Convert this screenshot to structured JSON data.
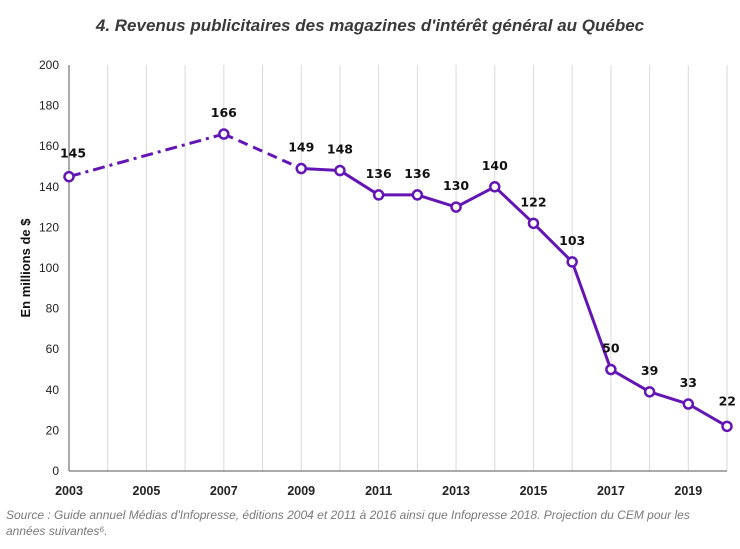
{
  "chart_data": {
    "type": "line",
    "title": "4. Revenus publicitaires des magazines d'intérêt général au Québec",
    "ylabel": "En millions de $",
    "xlabel": "",
    "ylim": [
      0,
      200
    ],
    "yticks": [
      0,
      20,
      40,
      60,
      80,
      100,
      120,
      140,
      160,
      180,
      200
    ],
    "xlim": [
      2003,
      2020
    ],
    "xticks": [
      2003,
      2005,
      2007,
      2009,
      2011,
      2013,
      2015,
      2017,
      2019
    ],
    "grid": "vertical",
    "legend": "none",
    "color": "#6316b4",
    "points": [
      {
        "x": 2003,
        "y": 145
      },
      {
        "x": 2007,
        "y": 166
      },
      {
        "x": 2009,
        "y": 149
      },
      {
        "x": 2010,
        "y": 148
      },
      {
        "x": 2011,
        "y": 136
      },
      {
        "x": 2012,
        "y": 136
      },
      {
        "x": 2013,
        "y": 130
      },
      {
        "x": 2014,
        "y": 140
      },
      {
        "x": 2015,
        "y": 122
      },
      {
        "x": 2016,
        "y": 103
      },
      {
        "x": 2017,
        "y": 50
      },
      {
        "x": 2018,
        "y": 39
      },
      {
        "x": 2019,
        "y": 33
      },
      {
        "x": 2020,
        "y": 22
      }
    ],
    "segments": [
      {
        "from": 2003,
        "to": 2007,
        "style": "dash-dot"
      },
      {
        "from": 2007,
        "to": 2009,
        "style": "dashed"
      },
      {
        "from": 2009,
        "to": 2020,
        "style": "solid"
      }
    ]
  },
  "source": "Source : Guide annuel Médias d'Infopresse, éditions 2004 et 2011 à 2016 ainsi que Infopresse 2018. Projection du CEM pour les années suivantes⁶."
}
